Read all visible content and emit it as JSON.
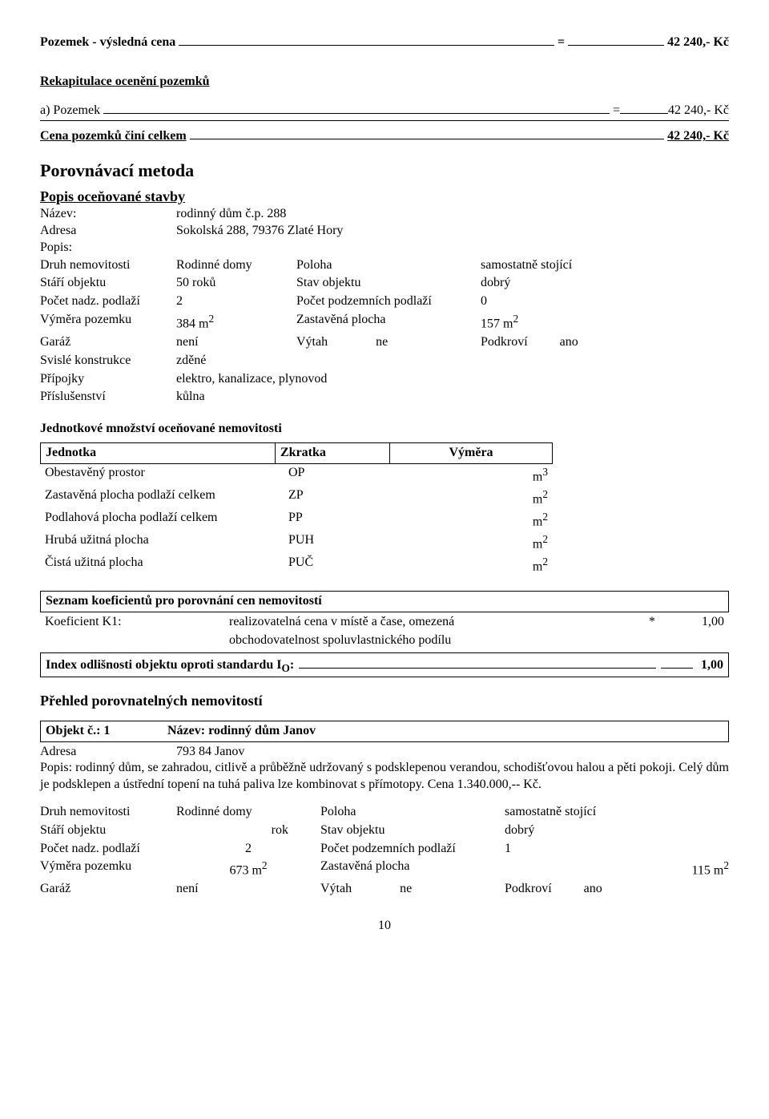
{
  "top": {
    "label": "Pozemek - výsledná cena",
    "eq": "=",
    "value": "42 240,- Kč"
  },
  "recap": {
    "title": "Rekapitulace ocenění pozemků",
    "row_label": "a) Pozemek",
    "row_eq": "=",
    "row_val": "42 240,- Kč",
    "total_label": "Cena pozemků činí celkem",
    "total_val": "42 240,- Kč"
  },
  "compare_title": "Porovnávací metoda",
  "popis_title": "Popis oceňované stavby",
  "subject": {
    "name_lbl": "Název:",
    "name_val": "rodinný dům č.p. 288",
    "addr_lbl": "Adresa",
    "addr_val": "Sokolská 288, 79376 Zlaté Hory",
    "popis_lbl": "Popis:",
    "r1c1": "Druh nemovitosti",
    "r1c2": "Rodinné domy",
    "r1c3": "Poloha",
    "r1c4": "samostatně stojící",
    "r2c1": "Stáří objektu",
    "r2c2": "50 roků",
    "r2c3": "Stav objektu",
    "r2c4": "dobrý",
    "r3c1": "Počet nadz. podlaží",
    "r3c2": "2",
    "r3c3": "Počet podzemních podlaží",
    "r3c4": "0",
    "r4c1": "Výměra pozemku",
    "r4c2_a": "384 m",
    "r4c2_sup": "2",
    "r4c3": "Zastavěná plocha",
    "r4c4_a": "157 m",
    "r4c4_sup": "2",
    "r5c1": "Garáž",
    "r5c2": "není",
    "r5c3a": "Výtah",
    "r5c3b": "ne",
    "r5c4a": "Podkroví",
    "r5c4b": "ano",
    "r6c1": "Svislé konstrukce",
    "r6c2": "zděné",
    "r7c1": "Přípojky",
    "r7c2": "elektro, kanalizace, plynovod",
    "r8c1": "Příslušenství",
    "r8c2": "kůlna"
  },
  "units_title": "Jednotkové množství oceňované nemovitosti",
  "units": {
    "hdr1": "Jednotka",
    "hdr2": "Zkratka",
    "hdr3": "Výměra",
    "rows": [
      {
        "a": "Obestavěný prostor",
        "b": "OP",
        "c": "m",
        "sup": "3"
      },
      {
        "a": "Zastavěná plocha podlaží celkem",
        "b": "ZP",
        "c": "m",
        "sup": "2"
      },
      {
        "a": "Podlahová plocha podlaží celkem",
        "b": "PP",
        "c": "m",
        "sup": "2"
      },
      {
        "a": "Hrubá užitná plocha",
        "b": "PUH",
        "c": "m",
        "sup": "2"
      },
      {
        "a": "Čistá užitná plocha",
        "b": "PUČ",
        "c": "m",
        "sup": "2"
      }
    ]
  },
  "koef": {
    "hdr": "Seznam koeficientů pro porovnání cen nemovitostí",
    "k1_lbl": "Koeficient K1:",
    "k1_txt1": "realizovatelná cena v místě a čase, omezená",
    "k1_star": "*",
    "k1_val": "1,00",
    "k1_txt2": "obchodovatelnost spoluvlastnického podílu",
    "idx_lbl_a": "Index odlišnosti objektu oproti standardu I",
    "idx_sub": "O",
    "idx_lbl_b": ":",
    "idx_val": "1,00"
  },
  "comp_title": "Přehled porovnatelných nemovitostí",
  "obj1": {
    "hdr_a": "Objekt č.: 1",
    "hdr_b": "Název: rodinný dům Janov",
    "addr_lbl": "Adresa",
    "addr_val": "793 84 Janov",
    "desc": "Popis: rodinný dům, se zahradou, citlivě a průběžně udržovaný s podsklepenou verandou, schodišťovou halou a pěti pokoji. Celý dům je podsklepen a ústřední topení na tuhá paliva lze kombinovat s přímotopy. Cena 1.340.000,-- Kč.",
    "r1c1": "Druh nemovitosti",
    "r1c2": "Rodinné domy",
    "r1c3": "Poloha",
    "r1c4": "samostatně stojící",
    "r2c1": "Stáří objektu",
    "r2c2": "rok",
    "r2c3": "Stav objektu",
    "r2c4": "dobrý",
    "r3c1": "Počet nadz. podlaží",
    "r3c2": "2",
    "r3c3": "Počet podzemních podlaží",
    "r3c4": "1",
    "r4c1": "Výměra pozemku",
    "r4c2_a": "673 m",
    "r4c2_sup": "2",
    "r4c3": "Zastavěná plocha",
    "r4c4_a": "115 m",
    "r4c4_sup": "2",
    "r5c1": "Garáž",
    "r5c2": "není",
    "r5c3a": "Výtah",
    "r5c3b": "ne",
    "r5c4a": "Podkroví",
    "r5c4b": "ano"
  },
  "page": "10"
}
